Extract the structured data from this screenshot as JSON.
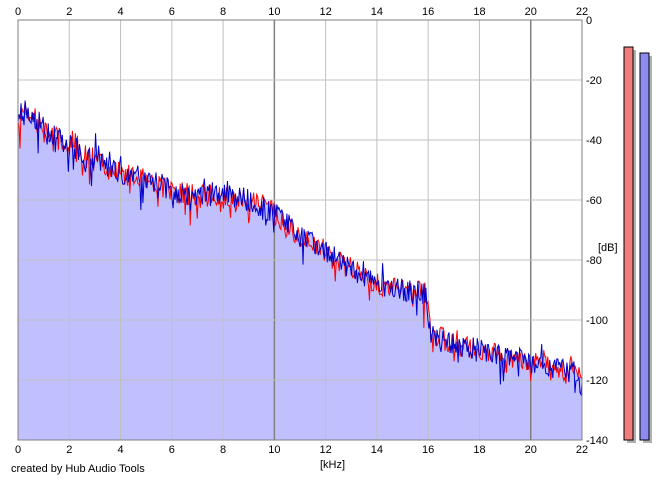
{
  "colors": {
    "left_channel": "#ff0000",
    "right_channel": "#0000cc",
    "fill": "#c0c0ff",
    "grid": "#c0c0c0",
    "grid_major": "#808080",
    "meter_left": "#f07c7c",
    "meter_right": "#8c8cf0"
  },
  "credit": "created by Hub Audio Tools",
  "chart_data": {
    "type": "line",
    "xlabel": "[kHz]",
    "ylabel": "[dB]",
    "xlim": [
      0,
      22
    ],
    "ylim": [
      -140,
      0
    ],
    "x_ticks": [
      0,
      2,
      4,
      6,
      8,
      10,
      12,
      14,
      16,
      18,
      20,
      22
    ],
    "y_ticks": [
      0,
      -20,
      -40,
      -60,
      -80,
      -100,
      -120,
      -140
    ],
    "x_tick_labels": [
      "0",
      "2",
      "4",
      "6",
      "8",
      "10",
      "12",
      "14",
      "16",
      "18",
      "20",
      "22"
    ],
    "y_tick_labels": [
      "0",
      "-20",
      "-40",
      "-60",
      "-80",
      "-100",
      "-120",
      "-140"
    ],
    "grid": true,
    "spectrum_envelope": {
      "x": [
        0,
        0.3,
        1,
        2,
        3,
        4,
        5,
        6,
        7,
        8,
        9,
        10,
        11,
        12,
        13,
        14,
        15,
        15.9,
        16.1,
        17,
        18,
        19,
        20,
        21,
        22
      ],
      "y": [
        -32,
        -29,
        -36,
        -42,
        -46,
        -51,
        -53,
        -57,
        -59,
        -58,
        -60,
        -64,
        -72,
        -77,
        -83,
        -88,
        -90,
        -91,
        -104,
        -108,
        -110,
        -112,
        -114,
        -116,
        -118
      ]
    },
    "series": [
      {
        "channel": "left",
        "color": "#ff0000",
        "noise": 3.8,
        "seed": 7
      },
      {
        "channel": "right",
        "color": "#0000cc",
        "noise": 3.8,
        "seed": 23
      }
    ],
    "level_meters": [
      {
        "channel": "left",
        "level_db": -9,
        "color": "#f07c7c"
      },
      {
        "channel": "right",
        "level_db": -11,
        "color": "#8c8cf0"
      }
    ]
  }
}
